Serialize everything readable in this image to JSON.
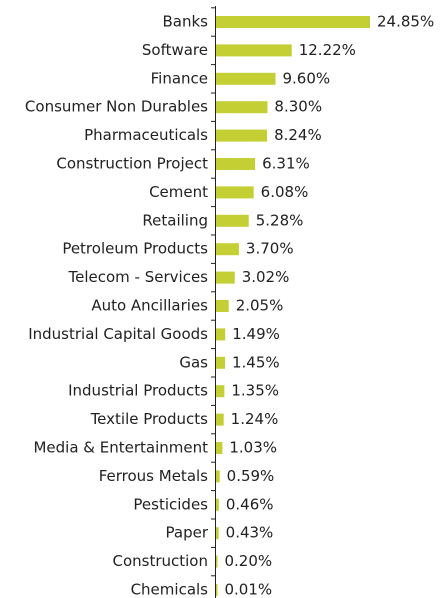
{
  "chart_data": {
    "type": "bar",
    "orientation": "horizontal",
    "color": "#c3cf32",
    "categories": [
      "Banks",
      "Software",
      "Finance",
      "Consumer Non Durables",
      "Pharmaceuticals",
      "Construction Project",
      "Cement",
      "Retailing",
      "Petroleum Products",
      "Telecom - Services",
      "Auto Ancillaries",
      "Industrial Capital Goods",
      "Gas",
      "Industrial Products",
      "Textile Products",
      "Media & Entertainment",
      "Ferrous Metals",
      "Pesticides",
      "Paper",
      "Construction",
      "Chemicals"
    ],
    "values": [
      24.85,
      12.22,
      9.6,
      8.3,
      8.24,
      6.31,
      6.08,
      5.28,
      3.7,
      3.02,
      2.05,
      1.49,
      1.45,
      1.35,
      1.24,
      1.03,
      0.59,
      0.46,
      0.43,
      0.2,
      0.01
    ],
    "value_labels": [
      "24.85%",
      "12.22%",
      "9.60%",
      "8.30%",
      "8.24%",
      "6.31%",
      "6.08%",
      "5.28%",
      "3.70%",
      "3.02%",
      "2.05%",
      "1.49%",
      "1.45%",
      "1.35%",
      "1.24%",
      "1.03%",
      "0.59%",
      "0.46%",
      "0.43%",
      "0.20%",
      "0.01%"
    ]
  }
}
